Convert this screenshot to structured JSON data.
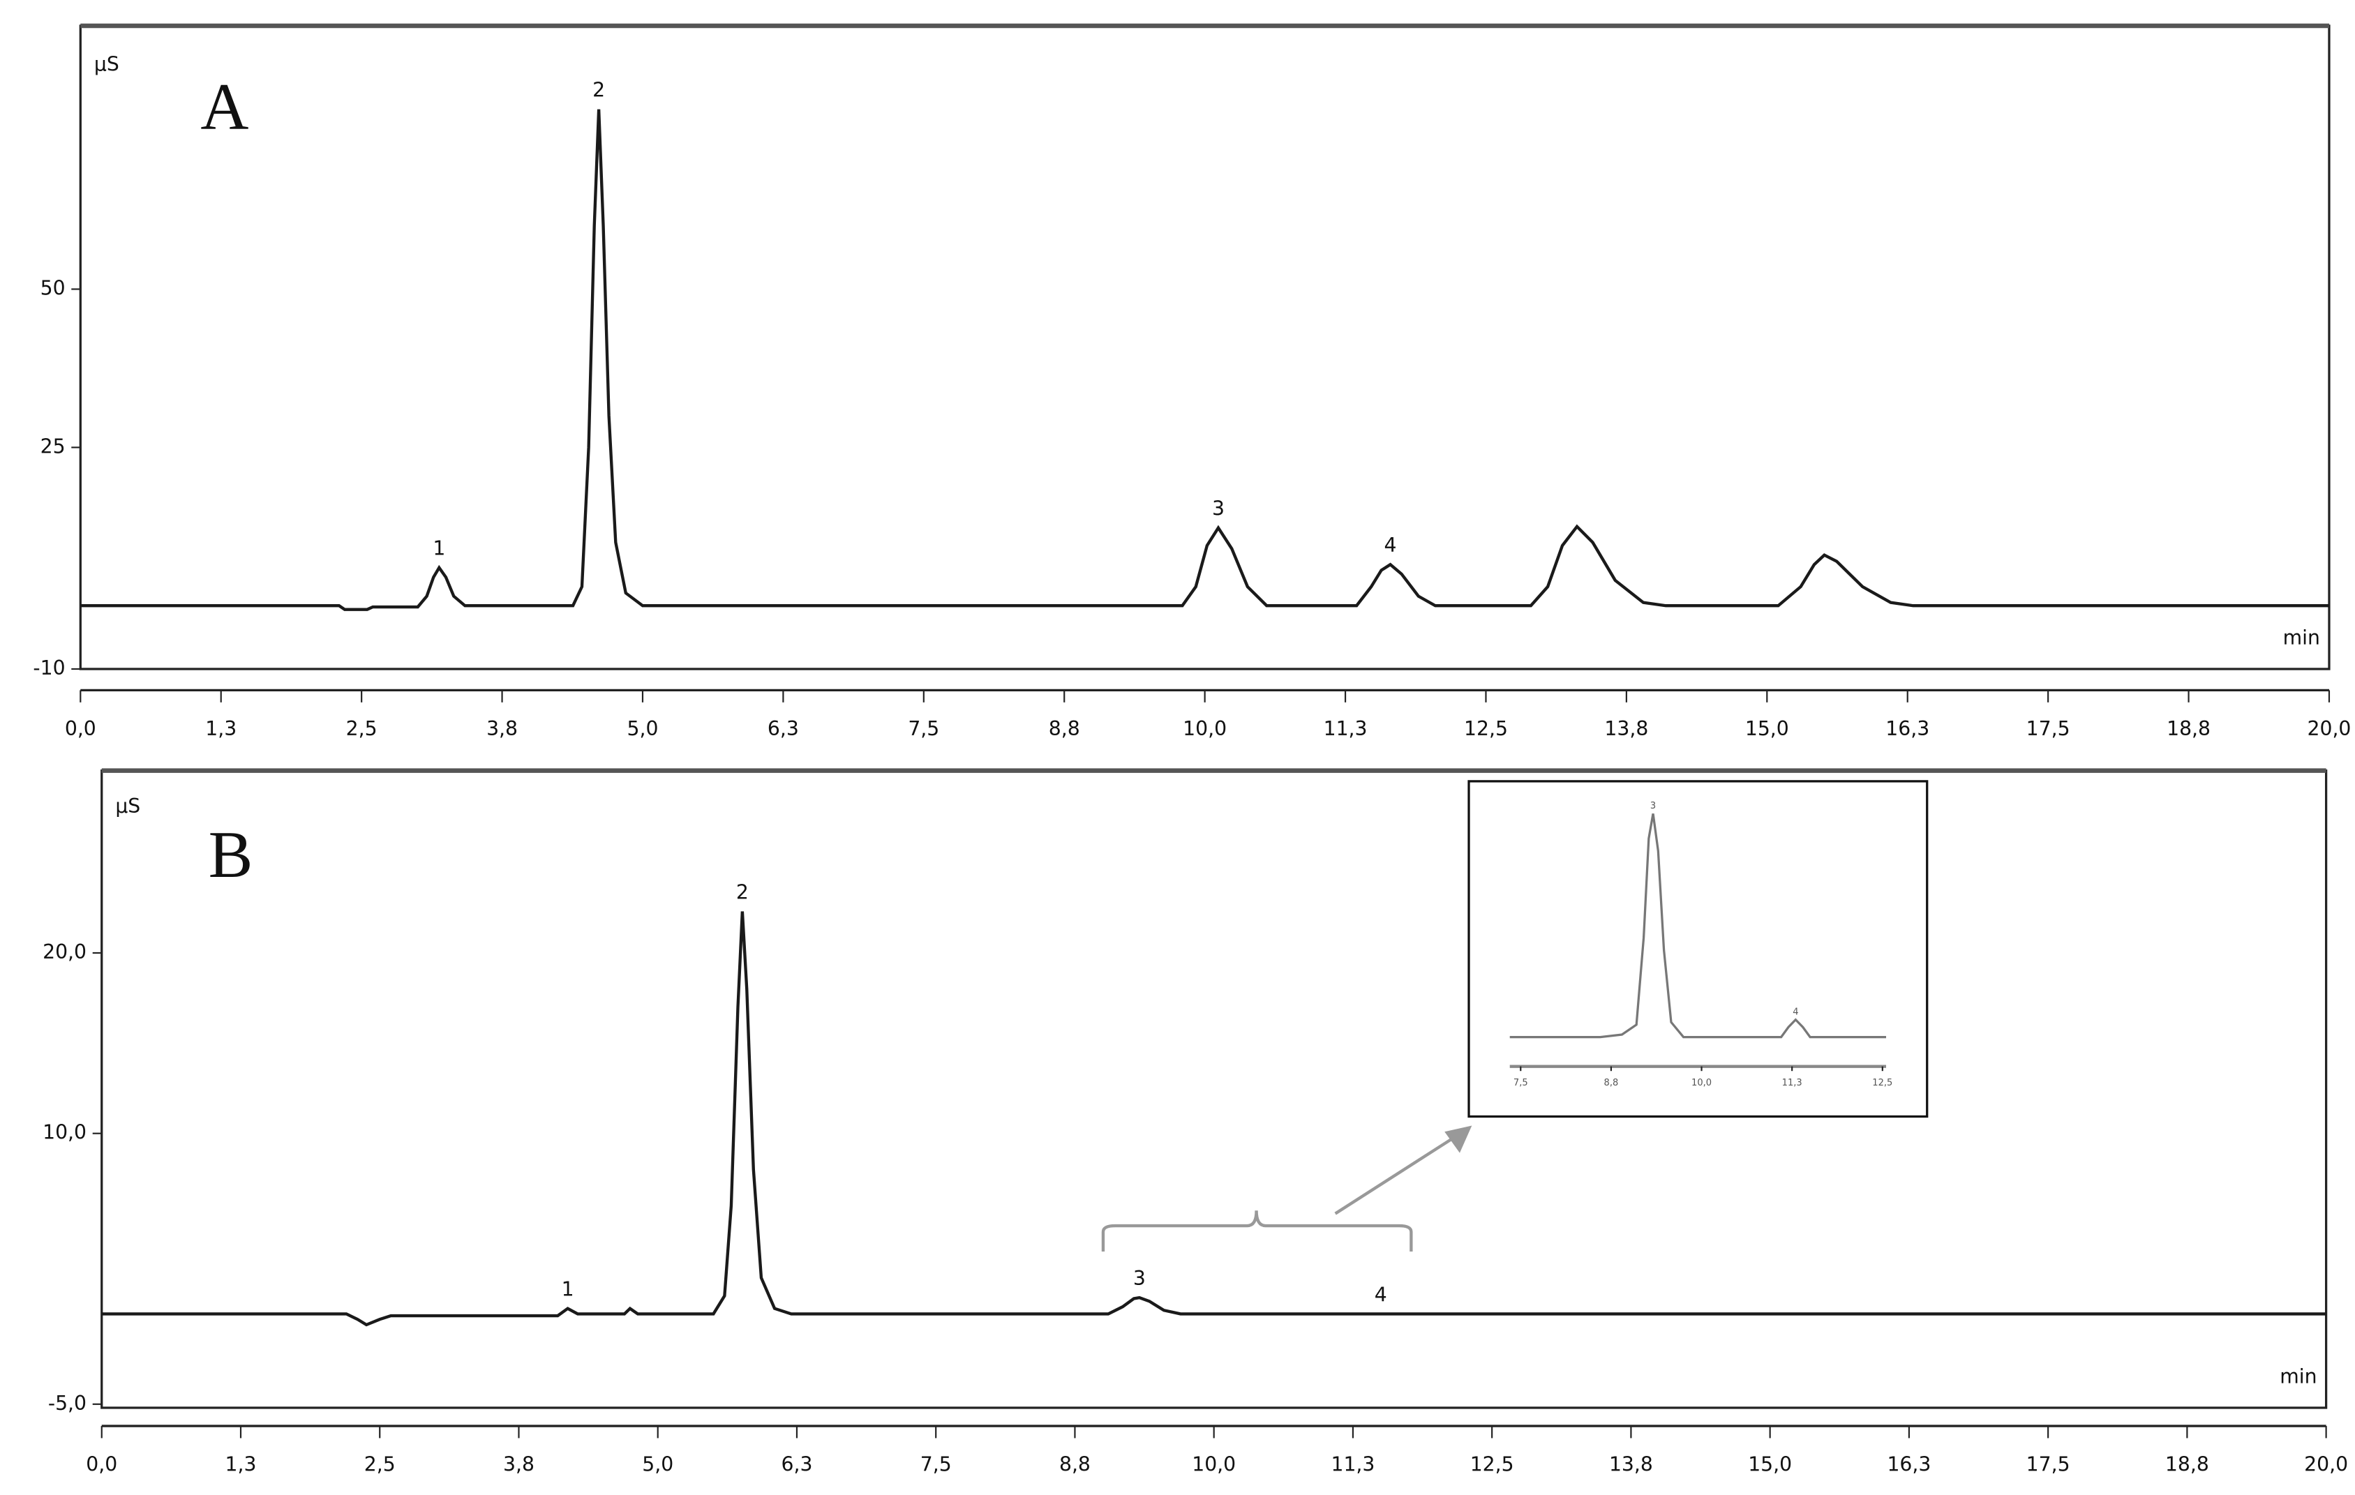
{
  "chart_data": [
    {
      "type": "line",
      "label": "A",
      "y_unit": "µS",
      "x_unit": "min",
      "xlim": [
        0,
        20
      ],
      "ylim": [
        -10,
        91.6
      ],
      "xticks": [
        {
          "value": 0,
          "label": "0,0"
        },
        {
          "value": 1.25,
          "label": "1,3"
        },
        {
          "value": 2.5,
          "label": "2,5"
        },
        {
          "value": 3.75,
          "label": "3,8"
        },
        {
          "value": 5,
          "label": "5,0"
        },
        {
          "value": 6.25,
          "label": "6,3"
        },
        {
          "value": 7.5,
          "label": "7,5"
        },
        {
          "value": 8.75,
          "label": "8,8"
        },
        {
          "value": 10,
          "label": "10,0"
        },
        {
          "value": 11.25,
          "label": "11,3"
        },
        {
          "value": 12.5,
          "label": "12,5"
        },
        {
          "value": 13.75,
          "label": "13,8"
        },
        {
          "value": 15,
          "label": "15,0"
        },
        {
          "value": 16.25,
          "label": "16,3"
        },
        {
          "value": 17.5,
          "label": "17,5"
        },
        {
          "value": 18.75,
          "label": "18,8"
        },
        {
          "value": 20,
          "label": "20,0"
        }
      ],
      "yticks": [
        -10,
        25,
        50
      ],
      "series": [
        {
          "color": "#1a1a1a",
          "x": [
            0,
            2.3,
            2.35,
            2.55,
            2.6,
            3.0,
            3.08,
            3.14,
            3.19,
            3.25,
            3.32,
            3.42,
            4.38,
            4.46,
            4.52,
            4.57,
            4.61,
            4.65,
            4.7,
            4.76,
            4.85,
            5.0,
            9.8,
            9.92,
            10.02,
            10.12,
            10.24,
            10.38,
            10.55,
            11.35,
            11.48,
            11.57,
            11.65,
            11.75,
            11.9,
            12.05,
            12.9,
            13.05,
            13.18,
            13.31,
            13.45,
            13.65,
            13.9,
            14.1,
            15.1,
            15.3,
            15.42,
            15.51,
            15.62,
            15.85,
            16.1,
            16.3,
            20
          ],
          "values": [
            0,
            0,
            -0.6,
            -0.6,
            -0.2,
            -0.2,
            1.5,
            4.5,
            6.0,
            4.5,
            1.5,
            0,
            0,
            3,
            25,
            60,
            78.4,
            60,
            30,
            10,
            2,
            0,
            0,
            3,
            9.5,
            12.3,
            9,
            3,
            0,
            0,
            3,
            5.6,
            6.5,
            5,
            1.5,
            0,
            0,
            3,
            9.5,
            12.5,
            10,
            4,
            0.5,
            0,
            0,
            3,
            6.5,
            8,
            7,
            3,
            0.5,
            0,
            0
          ]
        }
      ],
      "annotations": [
        {
          "text": "1",
          "x": 3.19,
          "y": 6.0
        },
        {
          "text": "2",
          "x": 4.61,
          "y": 78.4
        },
        {
          "text": "3",
          "x": 10.12,
          "y": 12.3
        },
        {
          "text": "4",
          "x": 11.65,
          "y": 6.5
        }
      ]
    },
    {
      "type": "line",
      "label": "B",
      "y_unit": "µS",
      "x_unit": "min",
      "xlim": [
        0,
        20
      ],
      "ylim": [
        -5.2,
        30.1
      ],
      "xticks": [
        {
          "value": 0,
          "label": "0,0"
        },
        {
          "value": 1.25,
          "label": "1,3"
        },
        {
          "value": 2.5,
          "label": "2,5"
        },
        {
          "value": 3.75,
          "label": "3,8"
        },
        {
          "value": 5,
          "label": "5,0"
        },
        {
          "value": 6.25,
          "label": "6,3"
        },
        {
          "value": 7.5,
          "label": "7,5"
        },
        {
          "value": 8.75,
          "label": "8,8"
        },
        {
          "value": 10,
          "label": "10,0"
        },
        {
          "value": 11.25,
          "label": "11,3"
        },
        {
          "value": 12.5,
          "label": "12,5"
        },
        {
          "value": 13.75,
          "label": "13,8"
        },
        {
          "value": 15,
          "label": "15,0"
        },
        {
          "value": 16.25,
          "label": "16,3"
        },
        {
          "value": 17.5,
          "label": "17,5"
        },
        {
          "value": 18.75,
          "label": "18,8"
        },
        {
          "value": 20,
          "label": "20,0"
        }
      ],
      "yticks": [
        {
          "value": -5,
          "label": "-5,0"
        },
        {
          "value": 10,
          "label": "10,0"
        },
        {
          "value": 20,
          "label": "20,0"
        }
      ],
      "series": [
        {
          "color": "#1a1a1a",
          "x": [
            0,
            2.2,
            2.3,
            2.38,
            2.5,
            2.6,
            4.1,
            4.19,
            4.28,
            4.7,
            4.75,
            4.82,
            5.5,
            5.6,
            5.66,
            5.72,
            5.76,
            5.8,
            5.86,
            5.93,
            6.05,
            6.2,
            9.05,
            9.18,
            9.28,
            9.33,
            9.42,
            9.55,
            9.7,
            20
          ],
          "values": [
            0,
            0,
            -0.3,
            -0.6,
            -0.3,
            -0.1,
            -0.1,
            0.3,
            0,
            0,
            0.3,
            0,
            0,
            1,
            6,
            17,
            22.3,
            18,
            8,
            2,
            0.3,
            0,
            0,
            0.4,
            0.85,
            0.9,
            0.7,
            0.2,
            0,
            0
          ]
        }
      ],
      "annotations": [
        {
          "text": "1",
          "x": 4.19,
          "y": 0.3
        },
        {
          "text": "2",
          "x": 5.76,
          "y": 22.3
        },
        {
          "text": "3",
          "x": 9.33,
          "y": 0.9
        },
        {
          "text": "4",
          "x": 11.5,
          "y": 0
        }
      ]
    },
    {
      "type": "line",
      "xlim": [
        7.35,
        12.55
      ],
      "ylim": [
        -0.1,
        1.0
      ],
      "xticks": [
        {
          "value": 7.5,
          "label": "7,5"
        },
        {
          "value": 8.75,
          "label": "8,8"
        },
        {
          "value": 10,
          "label": "10,0"
        },
        {
          "value": 11.25,
          "label": "11,3"
        },
        {
          "value": 12.5,
          "label": "12,5"
        }
      ],
      "series": [
        {
          "color": "#777777",
          "x": [
            7.35,
            8.6,
            8.9,
            9.1,
            9.2,
            9.27,
            9.33,
            9.4,
            9.48,
            9.58,
            9.75,
            11.1,
            11.2,
            11.3,
            11.4,
            11.5,
            12.55
          ],
          "values": [
            0,
            0,
            0.01,
            0.05,
            0.4,
            0.8,
            0.9,
            0.75,
            0.35,
            0.06,
            0,
            0,
            0.04,
            0.07,
            0.04,
            0,
            0
          ]
        }
      ],
      "annotations": [
        {
          "text": "3",
          "x": 9.33,
          "y": 0.9
        },
        {
          "text": "4",
          "x": 11.3,
          "y": 0.07
        }
      ]
    }
  ]
}
